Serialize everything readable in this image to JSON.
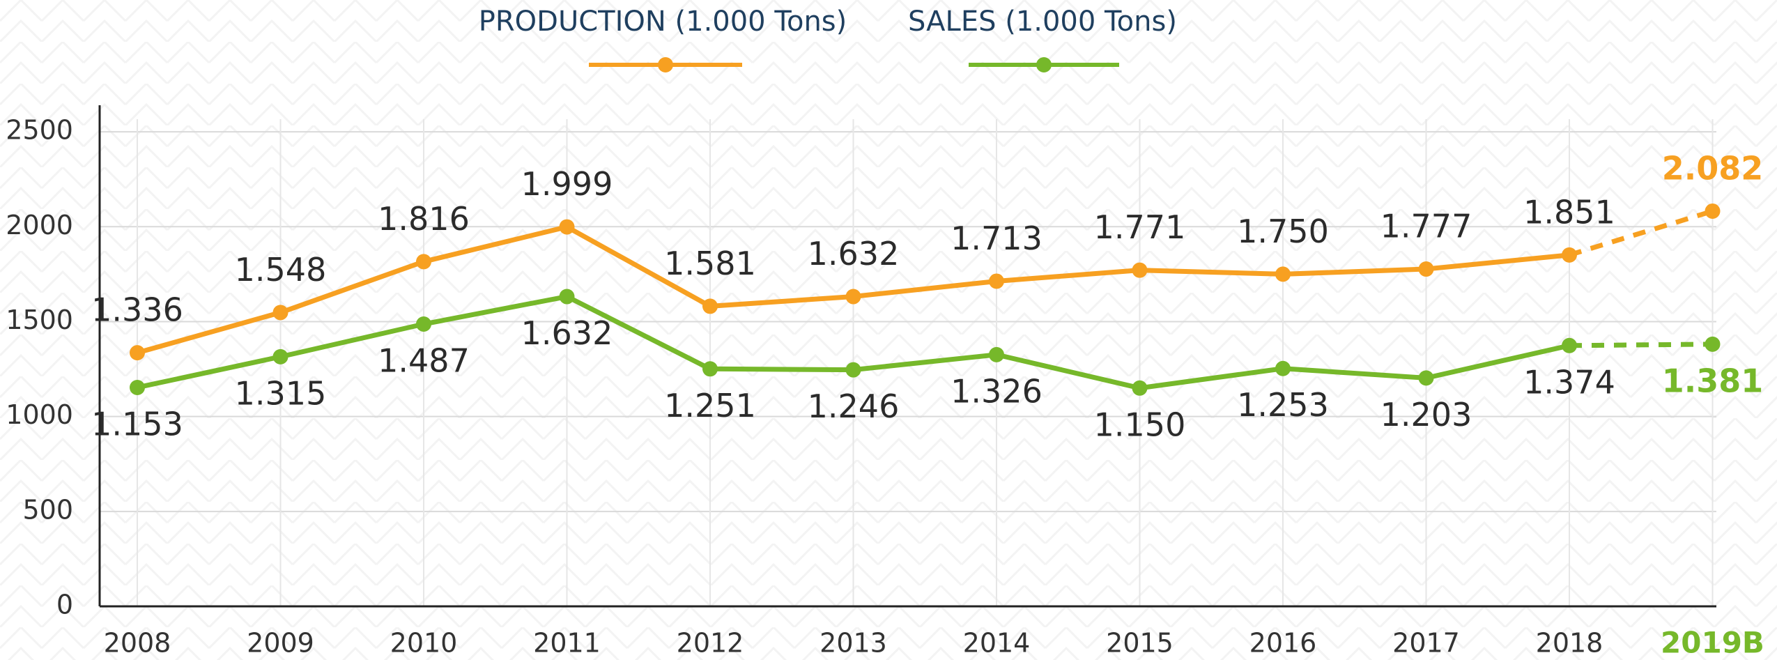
{
  "chart_data": {
    "type": "line",
    "categories": [
      "2008",
      "2009",
      "2010",
      "2011",
      "2012",
      "2013",
      "2014",
      "2015",
      "2016",
      "2017",
      "2018",
      "2019B"
    ],
    "series": [
      {
        "name": "PRODUCTION (1.000 Tons)",
        "color": "#f7a021",
        "values": [
          1336,
          1548,
          1816,
          1999,
          1581,
          1632,
          1713,
          1771,
          1750,
          1777,
          1851,
          2082
        ],
        "value_labels": [
          "1.336",
          "1.548",
          "1.816",
          "1.999",
          "1.581",
          "1.632",
          "1.713",
          "1.771",
          "1.750",
          "1.777",
          "1.851",
          "2.082"
        ]
      },
      {
        "name": "SALES (1.000 Tons)",
        "color": "#76b82a",
        "values": [
          1153,
          1315,
          1487,
          1632,
          1251,
          1246,
          1326,
          1150,
          1253,
          1203,
          1374,
          1381
        ],
        "value_labels": [
          "1.153",
          "1.315",
          "1.487",
          "1.632",
          "1.251",
          "1.246",
          "1.326",
          "1.150",
          "1.253",
          "1.203",
          "1.374",
          "1.381"
        ]
      }
    ],
    "ylim": [
      0,
      2640
    ],
    "yticks": [
      0,
      500,
      1000,
      1500,
      2000,
      2500
    ],
    "grid": true
  }
}
